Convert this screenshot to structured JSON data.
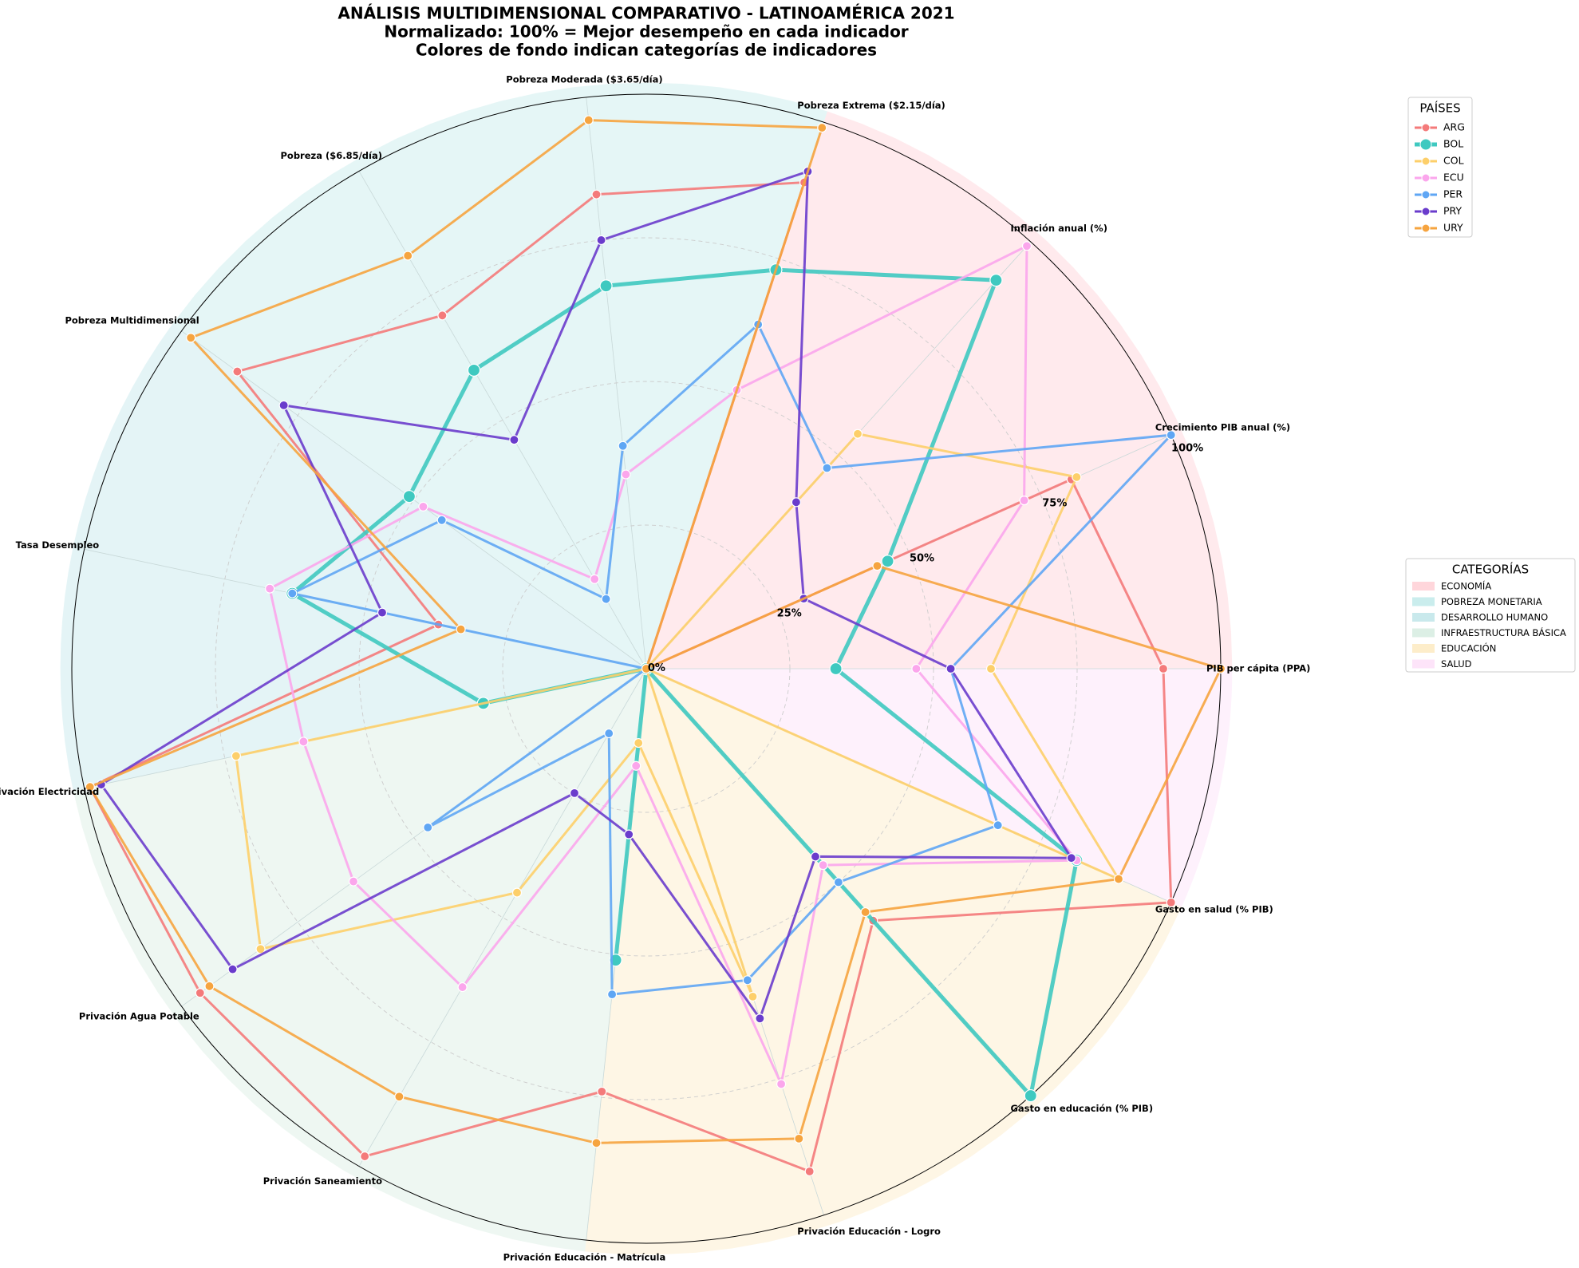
{
  "chart_data": {
    "type": "radar",
    "title": [
      "ANÁLISIS MULTIDIMENSIONAL COMPARATIVO - LATINOAMÉRICA 2021",
      "Normalizado: 100% = Mejor desempeño en cada indicador",
      "Colores de fondo indican categorías de indicadores"
    ],
    "categories": [
      "PIB per cápita (PPA)",
      "Crecimiento PIB anual (%)",
      "Inflación anual (%)",
      "Pobreza Extrema ($2.15/día)",
      "Pobreza Moderada ($3.65/día)",
      "Pobreza ($6.85/día)",
      "Pobreza Multidimensional",
      "Tasa Desempleo",
      "Privación Electricidad",
      "Privación Agua Potable",
      "Privación Saneamiento",
      "Privación Educación - Matrícula",
      "Privación Educación - Logro",
      "Gasto en educación (% PIB)",
      "Gasto en salud (% PIB)"
    ],
    "rlim": [
      0,
      100
    ],
    "rticks": [
      {
        "value": 0,
        "label": "0%"
      },
      {
        "value": 25,
        "label": "25%"
      },
      {
        "value": 50,
        "label": "50%"
      },
      {
        "value": 75,
        "label": "75%"
      },
      {
        "value": 100,
        "label": "100%"
      }
    ],
    "grid": true,
    "legend_title": "PAÍSES",
    "series": [
      {
        "name": "ARG",
        "color": "#f47a7a",
        "values": [
          90,
          81,
          0,
          89,
          83,
          71,
          88,
          37,
          99,
          96,
          98,
          74,
          92,
          59,
          100
        ]
      },
      {
        "name": "BOL",
        "color": "#3fc9c0",
        "values": [
          33,
          46,
          91,
          73,
          67,
          60,
          51,
          63,
          29,
          0,
          0,
          51,
          0,
          100,
          82
        ]
      },
      {
        "name": "COL",
        "color": "#fdcf6a",
        "values": [
          60,
          82,
          55,
          0,
          0,
          0,
          0,
          0,
          73,
          83,
          45,
          13,
          60,
          0,
          90
        ]
      },
      {
        "name": "ECU",
        "color": "#fba6ec",
        "values": [
          47,
          72,
          99,
          51,
          34,
          18,
          48,
          67,
          61,
          63,
          64,
          17,
          76,
          46,
          82
        ]
      },
      {
        "name": "PER",
        "color": "#5fa6f4",
        "values": [
          53,
          100,
          47,
          63,
          39,
          14,
          44,
          63,
          0,
          47,
          13,
          57,
          57,
          50,
          67
        ]
      },
      {
        "name": "PRY",
        "color": "#6a3ccc",
        "values": [
          53,
          30,
          39,
          91,
          75,
          46,
          78,
          47,
          97,
          89,
          25,
          29,
          64,
          44,
          81
        ]
      },
      {
        "name": "URY",
        "color": "#f6a43f",
        "values": [
          100,
          44,
          0,
          99,
          96,
          83,
          98,
          33,
          99,
          94,
          86,
          83,
          86,
          57,
          90
        ]
      }
    ],
    "category_legend_title": "CATEGORÍAS",
    "indicator_groups": [
      {
        "name": "ECONOMÍA",
        "color": "#ffc4cc",
        "axes": [
          0,
          1,
          2
        ]
      },
      {
        "name": "POBREZA MONETARIA",
        "color": "#b4e6e6",
        "axes": [
          3,
          4,
          5
        ]
      },
      {
        "name": "DESARROLLO HUMANO",
        "color": "#b2dfe4",
        "axes": [
          6,
          7
        ]
      },
      {
        "name": "INFRAESTRUCTURA BÁSICA",
        "color": "#cde8da",
        "axes": [
          8,
          9,
          10
        ]
      },
      {
        "name": "EDUCACIÓN",
        "color": "#fce6b4",
        "axes": [
          11,
          12,
          13
        ]
      },
      {
        "name": "SALUD",
        "color": "#fcd8f6",
        "axes": [
          14
        ]
      }
    ]
  }
}
